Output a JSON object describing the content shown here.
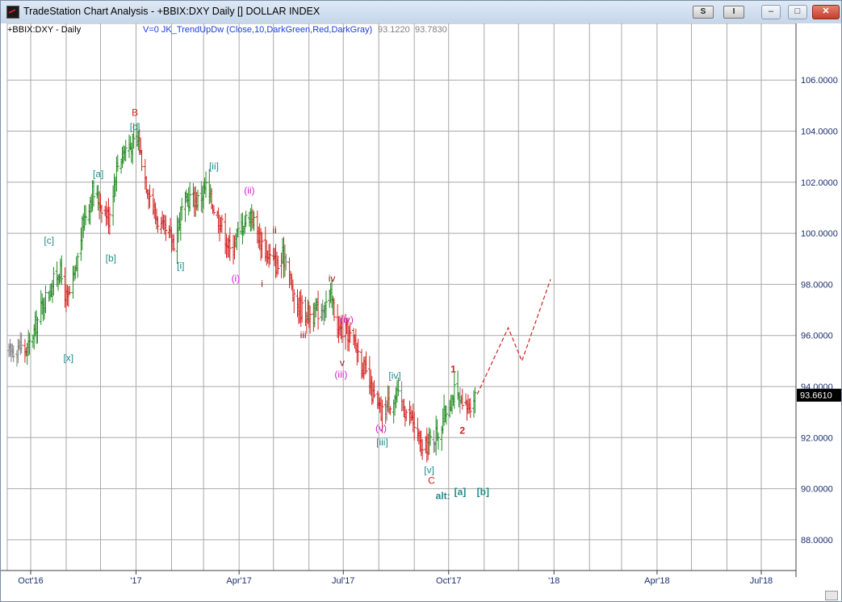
{
  "window": {
    "title": "TradeStation Chart Analysis - +BBIX:DXY Daily [] DOLLAR INDEX",
    "controls": {
      "s_label": "S",
      "i_label": "I",
      "minimize": "–",
      "restore": "□",
      "close": "✕"
    }
  },
  "header": {
    "symbol": "+BBIX:DXY - Daily",
    "indicator": "V=0  JK_TrendUpDw  (Close,10,DarkGreen,Red,DarkGray)",
    "value1": "93.1220",
    "value2": "93.7830"
  },
  "chart_data": {
    "type": "ohlc",
    "title": "",
    "xlabel": "",
    "ylabel": "",
    "ylim": [
      86.0,
      107.0
    ],
    "grid": true,
    "y_ticks": [
      88,
      90,
      92,
      94,
      96,
      98,
      100,
      102,
      104,
      106
    ],
    "y_tick_labels": [
      "88.0000",
      "90.0000",
      "92.0000",
      "94.0000",
      "96.0000",
      "98.0000",
      "100.0000",
      "102.0000",
      "104.0000",
      "106.0000"
    ],
    "x_ticks": [
      {
        "date": "2016-10-01",
        "label": "Oct'16"
      },
      {
        "date": "2017-01-01",
        "label": "'17"
      },
      {
        "date": "2017-04-01",
        "label": "Apr'17"
      },
      {
        "date": "2017-07-01",
        "label": "Jul'17"
      },
      {
        "date": "2017-10-01",
        "label": "Oct'17"
      },
      {
        "date": "2018-01-01",
        "label": "'18"
      },
      {
        "date": "2018-04-01",
        "label": "Apr'18"
      },
      {
        "date": "2018-07-01",
        "label": "Jul'18"
      }
    ],
    "x_range": [
      "2016-09-12",
      "2018-08-20"
    ],
    "last_price": "93.6610",
    "last_price_value": 93.661,
    "colors": {
      "up": "#1f8a1f",
      "down": "#d42020",
      "neutral": "#808080",
      "grid": "#a8a8a8",
      "axis_text": "#1a2e6e",
      "projection": "#d42020"
    },
    "price_path": [
      [
        "2016-09-12",
        95.3
      ],
      [
        "2016-09-20",
        95.6
      ],
      [
        "2016-09-28",
        95.4
      ],
      [
        "2016-10-05",
        96.3
      ],
      [
        "2016-10-12",
        97.3
      ],
      [
        "2016-10-19",
        97.9
      ],
      [
        "2016-10-26",
        98.6
      ],
      [
        "2016-11-02",
        97.3
      ],
      [
        "2016-11-09",
        98.4
      ],
      [
        "2016-11-16",
        100.5
      ],
      [
        "2016-11-24",
        101.6
      ],
      [
        "2016-12-01",
        101.2
      ],
      [
        "2016-12-08",
        100.6
      ],
      [
        "2016-12-15",
        102.6
      ],
      [
        "2016-12-22",
        103.3
      ],
      [
        "2017-01-03",
        103.6
      ],
      [
        "2017-01-10",
        102.0
      ],
      [
        "2017-01-18",
        100.7
      ],
      [
        "2017-01-26",
        100.0
      ],
      [
        "2017-02-03",
        99.7
      ],
      [
        "2017-02-10",
        100.9
      ],
      [
        "2017-02-17",
        101.4
      ],
      [
        "2017-02-24",
        101.3
      ],
      [
        "2017-03-03",
        101.8
      ],
      [
        "2017-03-10",
        101.0
      ],
      [
        "2017-03-17",
        100.3
      ],
      [
        "2017-03-24",
        99.3
      ],
      [
        "2017-04-03",
        100.3
      ],
      [
        "2017-04-11",
        100.8
      ],
      [
        "2017-04-19",
        99.8
      ],
      [
        "2017-04-27",
        99.1
      ],
      [
        "2017-05-05",
        98.7
      ],
      [
        "2017-05-12",
        99.2
      ],
      [
        "2017-05-19",
        97.3
      ],
      [
        "2017-05-29",
        96.9
      ],
      [
        "2017-06-05",
        96.8
      ],
      [
        "2017-06-12",
        97.1
      ],
      [
        "2017-06-20",
        97.5
      ],
      [
        "2017-06-27",
        96.2
      ],
      [
        "2017-07-05",
        96.1
      ],
      [
        "2017-07-12",
        95.6
      ],
      [
        "2017-07-19",
        94.7
      ],
      [
        "2017-07-27",
        93.6
      ],
      [
        "2017-08-03",
        92.9
      ],
      [
        "2017-08-10",
        93.4
      ],
      [
        "2017-08-17",
        93.6
      ],
      [
        "2017-08-24",
        93.1
      ],
      [
        "2017-08-31",
        92.6
      ],
      [
        "2017-09-08",
        91.4
      ],
      [
        "2017-09-15",
        91.9
      ],
      [
        "2017-09-22",
        92.2
      ],
      [
        "2017-09-29",
        93.1
      ],
      [
        "2017-10-06",
        93.8
      ],
      [
        "2017-10-13",
        93.1
      ],
      [
        "2017-10-18",
        93.2
      ],
      [
        "2017-10-24",
        93.7
      ]
    ],
    "projection": [
      [
        "2017-10-26",
        93.7
      ],
      [
        "2017-11-22",
        96.3
      ],
      [
        "2017-12-04",
        95.0
      ],
      [
        "2017-12-29",
        98.2
      ]
    ],
    "wave_labels": [
      {
        "text": "B",
        "date": "2016-12-31",
        "price": 104.6,
        "color": "#d42020"
      },
      {
        "text": "[c]",
        "date": "2016-12-31",
        "price": 104.05,
        "color": "#1f8b8b"
      },
      {
        "text": "[a]",
        "date": "2016-11-29",
        "price": 102.2,
        "color": "#1f8b8b"
      },
      {
        "text": "[b]",
        "date": "2016-12-10",
        "price": 98.9,
        "color": "#1f8b8b"
      },
      {
        "text": "[c]",
        "date": "2016-10-17",
        "price": 99.6,
        "color": "#1f8b8b"
      },
      {
        "text": "[x]",
        "date": "2016-11-03",
        "price": 95.0,
        "color": "#1f8b8b"
      },
      {
        "text": "[ii]",
        "date": "2017-03-10",
        "price": 102.5,
        "color": "#1f8b8b"
      },
      {
        "text": "[i]",
        "date": "2017-02-09",
        "price": 98.6,
        "color": "#1f8b8b"
      },
      {
        "text": "(ii)",
        "date": "2017-04-10",
        "price": 101.55,
        "color": "#d61bd6"
      },
      {
        "text": "(i)",
        "date": "2017-03-29",
        "price": 98.1,
        "color": "#d61bd6"
      },
      {
        "text": "ii",
        "date": "2017-05-02",
        "price": 100.0,
        "color": "#8b1a1a"
      },
      {
        "text": "i",
        "date": "2017-04-21",
        "price": 97.9,
        "color": "#8b1a1a"
      },
      {
        "text": "iv",
        "date": "2017-06-21",
        "price": 98.1,
        "color": "#8b1a1a"
      },
      {
        "text": "iii",
        "date": "2017-05-27",
        "price": 95.9,
        "color": "#8b1a1a"
      },
      {
        "text": "(iv)",
        "date": "2017-07-04",
        "price": 96.5,
        "color": "#d61bd6"
      },
      {
        "text": "v",
        "date": "2017-06-30",
        "price": 94.8,
        "color": "#8b1a1a"
      },
      {
        "text": "(iii)",
        "date": "2017-06-29",
        "price": 94.35,
        "color": "#d61bd6"
      },
      {
        "text": "[iv]",
        "date": "2017-08-15",
        "price": 94.3,
        "color": "#1f8b8b"
      },
      {
        "text": "(v)",
        "date": "2017-08-03",
        "price": 92.25,
        "color": "#d61bd6"
      },
      {
        "text": "[iii]",
        "date": "2017-08-04",
        "price": 91.7,
        "color": "#1f8b8b"
      },
      {
        "text": "[v]",
        "date": "2017-09-14",
        "price": 90.6,
        "color": "#1f8b8b"
      },
      {
        "text": "C",
        "date": "2017-09-16",
        "price": 90.2,
        "color": "#d42020"
      },
      {
        "text": "1",
        "date": "2017-10-05",
        "price": 94.55,
        "color": "#d42020",
        "bold": true
      },
      {
        "text": "2",
        "date": "2017-10-13",
        "price": 92.15,
        "color": "#d42020",
        "bold": true
      },
      {
        "text": "alt:",
        "date": "2017-09-26",
        "price": 89.6,
        "color": "#1f8b8b",
        "bold": true
      },
      {
        "text": "[a]",
        "date": "2017-10-11",
        "price": 89.75,
        "color": "#1f8b8b",
        "bold": true
      },
      {
        "text": "[b]",
        "date": "2017-10-31",
        "price": 89.75,
        "color": "#1f8b8b",
        "bold": true
      }
    ]
  }
}
